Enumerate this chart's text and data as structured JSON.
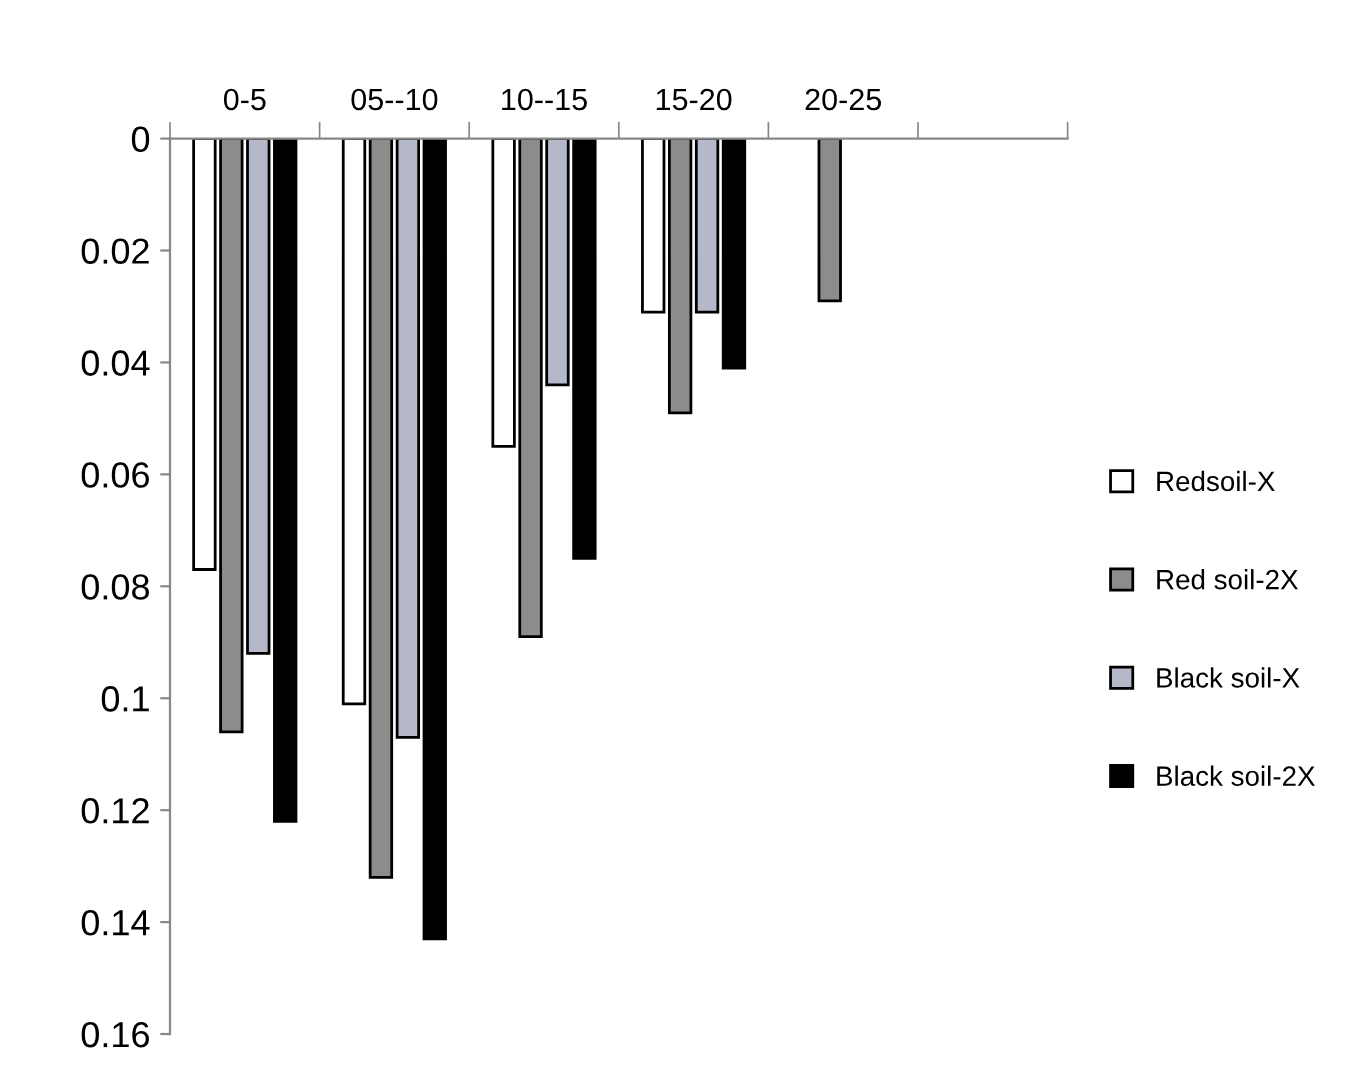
{
  "chart_data": {
    "type": "bar",
    "categories": [
      "0-5",
      "05--10",
      "10--15",
      "15-20",
      "20-25",
      null
    ],
    "series": [
      {
        "name": "Redsoil-X",
        "color": "#ffffff",
        "values": [
          0.077,
          0.101,
          0.055,
          0.031,
          null,
          null
        ]
      },
      {
        "name": "Red soil-2X",
        "color": "#8c8c8c",
        "values": [
          0.106,
          0.132,
          0.089,
          0.049,
          0.029,
          null
        ]
      },
      {
        "name": "Black soil-X",
        "color": "#b4b8c8",
        "values": [
          0.092,
          0.107,
          0.044,
          0.031,
          null,
          null
        ]
      },
      {
        "name": "Black soil-2X",
        "color": "#000000",
        "values": [
          0.122,
          0.143,
          0.075,
          0.041,
          null,
          null
        ]
      }
    ],
    "ylim": [
      0.16,
      0
    ],
    "yticks": [
      0,
      0.02,
      0.04,
      0.06,
      0.08,
      0.1,
      0.12,
      0.14,
      0.16
    ],
    "grid": false,
    "legend": "right"
  }
}
